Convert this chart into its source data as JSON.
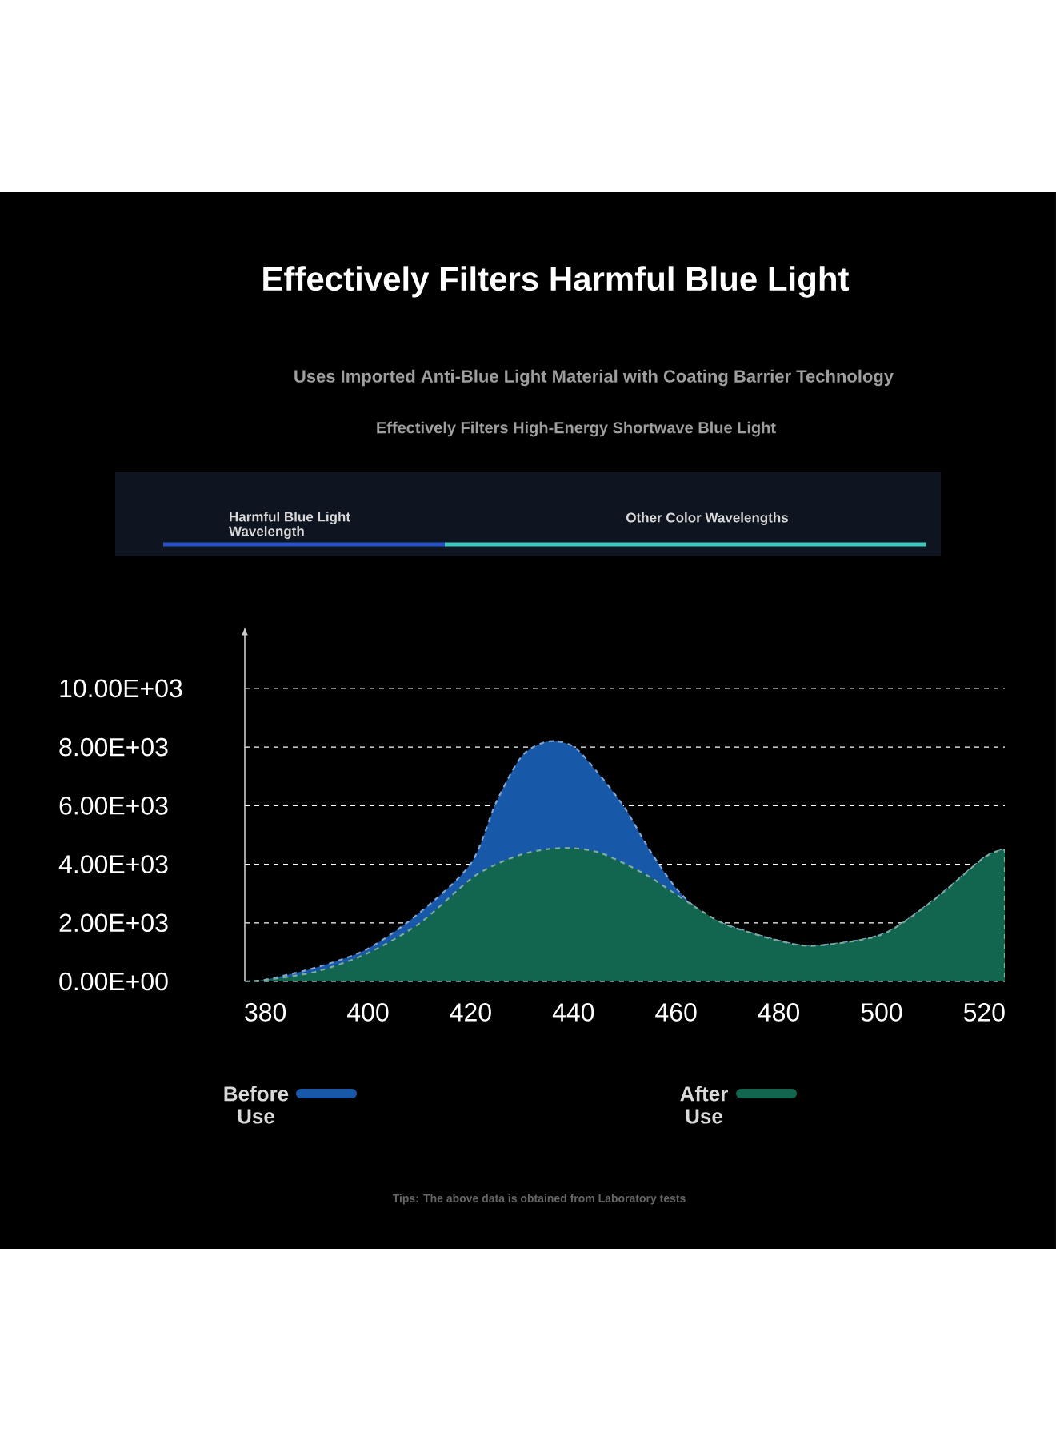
{
  "chart_data": {
    "type": "area",
    "title": "Effectively Filters Harmful Blue Light",
    "subtitle": "Uses Imported Anti-Blue Light Material with Coating Barrier Technology",
    "annotations": [
      "Effectively Filters High-Energy Shortwave Blue Light",
      "Harmful Blue Light\nWavelength",
      "Other Color Wavelengths",
      "Tips: The above data is obtained from Laboratory tests"
    ],
    "x": [
      376,
      380,
      390,
      400,
      410,
      420,
      425,
      430,
      435,
      440,
      445,
      450,
      455,
      460,
      465,
      470,
      480,
      487,
      500,
      510,
      520,
      524
    ],
    "series": [
      {
        "name": "Before\nUse",
        "color": "#1858a8",
        "values": [
          0,
          60,
          480,
          1120,
          2340,
          4020,
          6130,
          7700,
          8190,
          8020,
          7070,
          5920,
          4440,
          3180,
          2340,
          1920,
          1390,
          1220,
          1600,
          2760,
          4230,
          4500
        ]
      },
      {
        "name": "After\nUse",
        "color": "#126650",
        "values": [
          0,
          50,
          340,
          970,
          1980,
          3500,
          4000,
          4340,
          4520,
          4550,
          4400,
          4020,
          3550,
          2970,
          2400,
          1920,
          1390,
          1220,
          1600,
          2760,
          4230,
          4500
        ]
      }
    ],
    "xlim": [
      376,
      524
    ],
    "ylim": [
      0,
      11800
    ],
    "xticks": [
      380,
      400,
      420,
      440,
      460,
      480,
      500,
      520
    ],
    "yticks": [
      {
        "value": 0,
        "label": "0.00E+00"
      },
      {
        "value": 2000,
        "label": "2.00E+03"
      },
      {
        "value": 4000,
        "label": "4.00E+03"
      },
      {
        "value": 6000,
        "label": "6.00E+03"
      },
      {
        "value": 8000,
        "label": "8.00E+03"
      },
      {
        "value": 10000,
        "label": "10.00E+03"
      }
    ],
    "grid": "y",
    "legend": "bottom",
    "line_style": "dashed"
  }
}
